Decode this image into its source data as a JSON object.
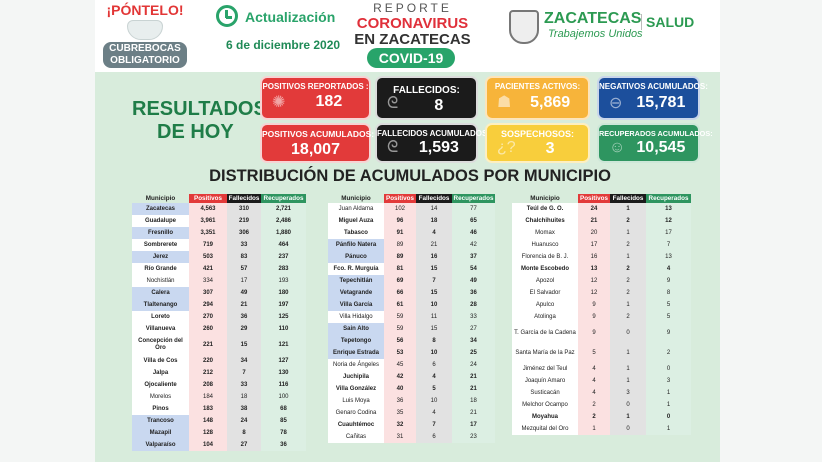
{
  "header": {
    "ponte_title": "¡PÓNTELO!",
    "ponte_line1": "CUBREBOCAS",
    "ponte_line2": "OBLIGATORIO",
    "update_label": "Actualización",
    "date": "6 de diciembre 2020",
    "report_line1": "REPORTE",
    "report_line2": "CORONAVIRUS",
    "report_line3": "EN ZACATECAS",
    "covid_badge": "COVID-19",
    "state_name": "ZACATECAS",
    "state_slogan": "Trabajemos Unidos",
    "salud": "SALUD"
  },
  "results": {
    "title_line1": "RESULTADOS",
    "title_line2": "DE HOY",
    "cards": [
      {
        "label": "POSITIVOS REPORTADOS :",
        "value": "182",
        "icon": "virus-icon",
        "color": "#e23a3a"
      },
      {
        "label": "FALLECIDOS:",
        "value": "8",
        "icon": "ribbon-icon",
        "color": "#1b1b1b"
      },
      {
        "label": "PACIENTES ACTIVOS:",
        "value": "5,869",
        "icon": "patient-icon",
        "color": "#f7b43a"
      },
      {
        "label": "NEGATIVOS ACUMULADOS:",
        "value": "15,781",
        "icon": "negative-icon",
        "color": "#1c4f9c"
      },
      {
        "label": "POSITIVOS ACUMULADOS:",
        "value": "18,007",
        "icon": "none",
        "color": "#e23a3a"
      },
      {
        "label": "FALLECIDOS ACUMULADOS:",
        "value": "1,593",
        "icon": "ribbon-icon",
        "color": "#1b1b1b"
      },
      {
        "label": "SOSPECHOSOS:",
        "value": "3",
        "icon": "question-icon",
        "color": "#f8ce3c"
      },
      {
        "label": "RECUPERADOS ACUMULADOS:",
        "value": "10,545",
        "icon": "recovered-icon",
        "color": "#2e9560"
      }
    ]
  },
  "distribution_title": "DISTRIBUCIÓN DE ACUMULADOS POR MUNICIPIO",
  "table_headers": [
    "Municipio",
    "Positivos",
    "Fallecidos",
    "Recuperados"
  ],
  "tables": [
    {
      "rows": [
        {
          "m": "Zacatecas",
          "p": "4,563",
          "f": "310",
          "r": "2,721",
          "hl": true,
          "bd": true
        },
        {
          "m": "Guadalupe",
          "p": "3,961",
          "f": "219",
          "r": "2,486",
          "hl": false,
          "bd": true
        },
        {
          "m": "Fresnillo",
          "p": "3,351",
          "f": "306",
          "r": "1,880",
          "hl": true,
          "bd": true
        },
        {
          "m": "Sombrerete",
          "p": "719",
          "f": "33",
          "r": "464",
          "hl": false,
          "bd": true
        },
        {
          "m": "Jerez",
          "p": "503",
          "f": "83",
          "r": "237",
          "hl": true,
          "bd": true
        },
        {
          "m": "Río Grande",
          "p": "421",
          "f": "57",
          "r": "283",
          "hl": false,
          "bd": true
        },
        {
          "m": "Nochistlán",
          "p": "334",
          "f": "17",
          "r": "193",
          "hl": false,
          "bd": false
        },
        {
          "m": "Calera",
          "p": "307",
          "f": "49",
          "r": "180",
          "hl": true,
          "bd": true
        },
        {
          "m": "Tlaltenango",
          "p": "294",
          "f": "21",
          "r": "197",
          "hl": true,
          "bd": true
        },
        {
          "m": "Loreto",
          "p": "270",
          "f": "36",
          "r": "125",
          "hl": false,
          "bd": true
        },
        {
          "m": "Villanueva",
          "p": "260",
          "f": "29",
          "r": "110",
          "hl": false,
          "bd": true
        },
        {
          "m": "Concepción del Oro",
          "p": "221",
          "f": "15",
          "r": "121",
          "hl": false,
          "bd": true,
          "tall": true
        },
        {
          "m": "Villa de Cos",
          "p": "220",
          "f": "34",
          "r": "127",
          "hl": false,
          "bd": true
        },
        {
          "m": "Jalpa",
          "p": "212",
          "f": "7",
          "r": "130",
          "hl": false,
          "bd": true
        },
        {
          "m": "Ojocaliente",
          "p": "208",
          "f": "33",
          "r": "116",
          "hl": false,
          "bd": true
        },
        {
          "m": "Morelos",
          "p": "184",
          "f": "18",
          "r": "100",
          "hl": false,
          "bd": false
        },
        {
          "m": "Pinos",
          "p": "183",
          "f": "38",
          "r": "68",
          "hl": false,
          "bd": true
        },
        {
          "m": "Trancoso",
          "p": "148",
          "f": "24",
          "r": "85",
          "hl": true,
          "bd": true
        },
        {
          "m": "Mazapil",
          "p": "128",
          "f": "8",
          "r": "78",
          "hl": true,
          "bd": true
        },
        {
          "m": "Valparaíso",
          "p": "104",
          "f": "27",
          "r": "36",
          "hl": true,
          "bd": true
        }
      ]
    },
    {
      "rows": [
        {
          "m": "Juan Aldama",
          "p": "102",
          "f": "14",
          "r": "77",
          "hl": false,
          "bd": false
        },
        {
          "m": "Miguel Auza",
          "p": "96",
          "f": "18",
          "r": "65",
          "hl": false,
          "bd": true
        },
        {
          "m": "Tabasco",
          "p": "91",
          "f": "4",
          "r": "46",
          "hl": false,
          "bd": true
        },
        {
          "m": "Pánfilo Natera",
          "p": "89",
          "f": "21",
          "r": "42",
          "hl": true,
          "bd": false
        },
        {
          "m": "Pánuco",
          "p": "89",
          "f": "16",
          "r": "37",
          "hl": true,
          "bd": true
        },
        {
          "m": "Fco. R. Murguía",
          "p": "81",
          "f": "15",
          "r": "54",
          "hl": false,
          "bd": true
        },
        {
          "m": "Tepechitlán",
          "p": "69",
          "f": "7",
          "r": "49",
          "hl": true,
          "bd": true
        },
        {
          "m": "Vetagrande",
          "p": "66",
          "f": "15",
          "r": "36",
          "hl": true,
          "bd": true
        },
        {
          "m": "Villa García",
          "p": "61",
          "f": "10",
          "r": "28",
          "hl": true,
          "bd": true
        },
        {
          "m": "Villa Hidalgo",
          "p": "59",
          "f": "11",
          "r": "33",
          "hl": false,
          "bd": false
        },
        {
          "m": "Sain Alto",
          "p": "59",
          "f": "15",
          "r": "27",
          "hl": true,
          "bd": false
        },
        {
          "m": "Tepetongo",
          "p": "56",
          "f": "8",
          "r": "34",
          "hl": true,
          "bd": true
        },
        {
          "m": "Enrique Estrada",
          "p": "53",
          "f": "10",
          "r": "25",
          "hl": true,
          "bd": true
        },
        {
          "m": "Noria de Ángeles",
          "p": "45",
          "f": "6",
          "r": "24",
          "hl": false,
          "bd": false
        },
        {
          "m": "Juchipila",
          "p": "42",
          "f": "4",
          "r": "21",
          "hl": false,
          "bd": true
        },
        {
          "m": "Villa González",
          "p": "40",
          "f": "5",
          "r": "21",
          "hl": false,
          "bd": true
        },
        {
          "m": "Luis Moya",
          "p": "36",
          "f": "10",
          "r": "18",
          "hl": false,
          "bd": false
        },
        {
          "m": "Genaro Codina",
          "p": "35",
          "f": "4",
          "r": "21",
          "hl": false,
          "bd": false
        },
        {
          "m": "Cuauhtémoc",
          "p": "32",
          "f": "7",
          "r": "17",
          "hl": false,
          "bd": true
        },
        {
          "m": "Cañitas",
          "p": "31",
          "f": "6",
          "r": "23",
          "hl": false,
          "bd": false
        }
      ]
    },
    {
      "rows": [
        {
          "m": "Teúl de G. O.",
          "p": "24",
          "f": "1",
          "r": "13",
          "hl": false,
          "bd": true
        },
        {
          "m": "Chalchihuites",
          "p": "21",
          "f": "2",
          "r": "12",
          "hl": false,
          "bd": true
        },
        {
          "m": "Momax",
          "p": "20",
          "f": "1",
          "r": "17",
          "hl": false,
          "bd": false
        },
        {
          "m": "Huanusco",
          "p": "17",
          "f": "2",
          "r": "7",
          "hl": false,
          "bd": false
        },
        {
          "m": "Florencia de B. J.",
          "p": "16",
          "f": "1",
          "r": "13",
          "hl": false,
          "bd": false
        },
        {
          "m": "Monte Escobedo",
          "p": "13",
          "f": "2",
          "r": "4",
          "hl": false,
          "bd": true
        },
        {
          "m": "Apozol",
          "p": "12",
          "f": "2",
          "r": "9",
          "hl": false,
          "bd": false
        },
        {
          "m": "El Salvador",
          "p": "12",
          "f": "2",
          "r": "8",
          "hl": false,
          "bd": false
        },
        {
          "m": "Apulco",
          "p": "9",
          "f": "1",
          "r": "5",
          "hl": false,
          "bd": false
        },
        {
          "m": "Atolinga",
          "p": "9",
          "f": "2",
          "r": "5",
          "hl": false,
          "bd": false
        },
        {
          "m": "T. García de la Cadena",
          "p": "9",
          "f": "0",
          "r": "9",
          "hl": false,
          "bd": false,
          "tall": true
        },
        {
          "m": "Santa María de la Paz",
          "p": "5",
          "f": "1",
          "r": "2",
          "hl": false,
          "bd": false,
          "tall": true
        },
        {
          "m": "Jiménez del Teul",
          "p": "4",
          "f": "1",
          "r": "0",
          "hl": false,
          "bd": false
        },
        {
          "m": "Joaquín Amaro",
          "p": "4",
          "f": "1",
          "r": "3",
          "hl": false,
          "bd": false
        },
        {
          "m": "Susticacán",
          "p": "4",
          "f": "3",
          "r": "1",
          "hl": false,
          "bd": false
        },
        {
          "m": "Melchor Ocampo",
          "p": "2",
          "f": "0",
          "r": "1",
          "hl": false,
          "bd": false
        },
        {
          "m": "Moyahua",
          "p": "2",
          "f": "1",
          "r": "0",
          "hl": false,
          "bd": true
        },
        {
          "m": "Mezquital del Oro",
          "p": "1",
          "f": "0",
          "r": "1",
          "hl": false,
          "bd": false
        }
      ]
    }
  ]
}
